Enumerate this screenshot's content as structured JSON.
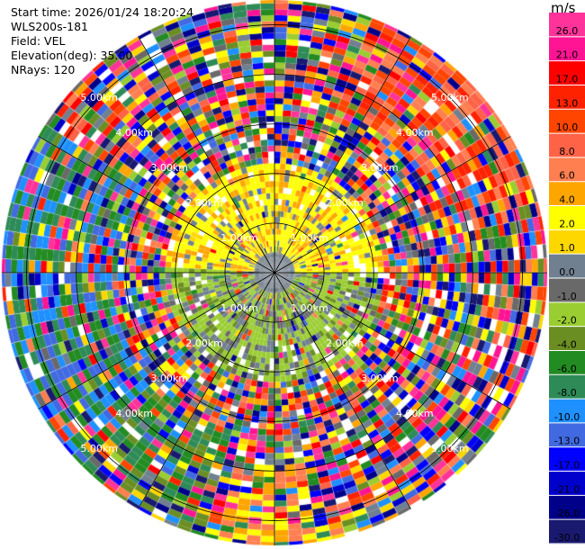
{
  "info": {
    "start_time": "Start time: 2026/01/24 18:20:24",
    "instrument": "WLS200s-181",
    "field": "Field: VEL",
    "elevation": "Elevation(deg): 35.00",
    "nrays": "NRays: 120"
  },
  "colorbar": {
    "unit": "m/s",
    "ticks": [
      "26.0",
      "21.0",
      "17.0",
      "13.0",
      "10.0",
      "8.0",
      "6.0",
      "4.0",
      "2.0",
      "1.0",
      "0.0",
      "-1.0",
      "-2.0",
      "-4.0",
      "-6.0",
      "-8.0",
      "-10.0",
      "-13.0",
      "-17.0",
      "-21.0",
      "-26.0",
      "-30.0"
    ],
    "colors": [
      "#ff3399",
      "#ff1493",
      "#ff0000",
      "#ff2200",
      "#ff4500",
      "#ff6347",
      "#ff7f50",
      "#ffa500",
      "#ffff00",
      "#ffd700",
      "#708090",
      "#696969",
      "#9acd32",
      "#6b8e23",
      "#228b22",
      "#2e8b57",
      "#1e90ff",
      "#4169e1",
      "#0000ff",
      "#0000cd",
      "#00008b",
      "#191970"
    ]
  },
  "chart_data": {
    "type": "heatmap",
    "projection": "polar (PPI)",
    "field": "VEL",
    "units": "m/s",
    "elevation_deg": 35.0,
    "n_rays": 120,
    "range_rings_labels": [
      "1.00km",
      "2.00km",
      "3.00km",
      "4.00km",
      "5.00km"
    ],
    "range_max_km": 5.5,
    "value_range": [
      -30.0,
      26.0
    ],
    "pattern": {
      "inner_north_half": "positive velocities (yellow, 2 to 4 m/s)",
      "inner_south_half": "negative velocities (yellow-green, -1 to -2 m/s)",
      "center": "near-zero (gray)",
      "outer_ranges": "noisy, mixed colors",
      "west_sector": "blue to green (-6 to -13 m/s)",
      "northeast_sector": "orange to red (6 to 10 m/s)"
    }
  }
}
